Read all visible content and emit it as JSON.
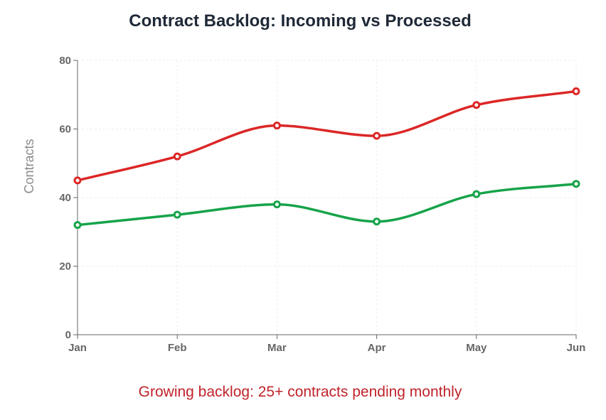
{
  "chart_data": {
    "type": "line",
    "title": "Contract Backlog: Incoming vs Processed",
    "xlabel": "",
    "ylabel": "Contracts",
    "categories": [
      "Jan",
      "Feb",
      "Mar",
      "Apr",
      "May",
      "Jun"
    ],
    "ylim": [
      0,
      80
    ],
    "yticks": [
      0,
      20,
      40,
      60,
      80
    ],
    "grid": true,
    "legend": "none",
    "series": [
      {
        "name": "Incoming",
        "color": "#dc2626",
        "values": [
          45,
          52,
          61,
          58,
          67,
          71
        ]
      },
      {
        "name": "Processed",
        "color": "#16a34a",
        "values": [
          32,
          35,
          38,
          33,
          41,
          44
        ]
      }
    ],
    "annotation": "Growing backlog: 25+ contracts pending monthly"
  }
}
